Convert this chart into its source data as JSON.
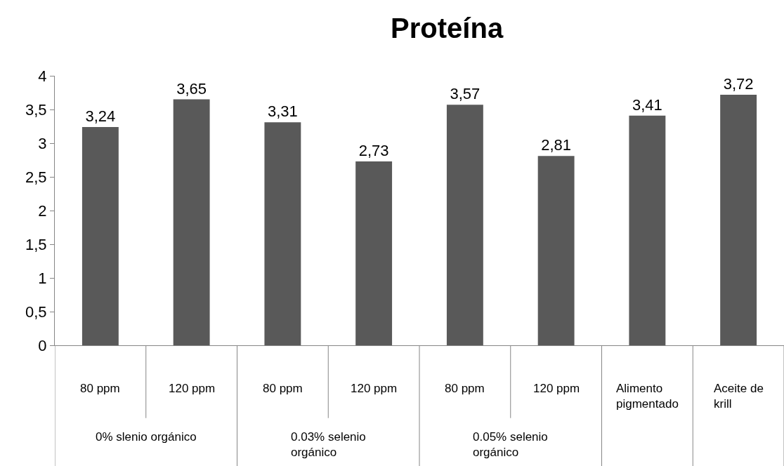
{
  "chart_data": {
    "type": "bar",
    "title": "Proteína",
    "categories": [
      "80 ppm",
      "120 ppm",
      "80 ppm",
      "120 ppm",
      "80 ppm",
      "120 ppm",
      "Alimento pigmentado",
      "Aceite de krill"
    ],
    "values": [
      3.24,
      3.65,
      3.31,
      2.73,
      3.57,
      2.81,
      3.41,
      3.72
    ],
    "value_labels": [
      "3,24",
      "3,65",
      "3,31",
      "2,73",
      "3,57",
      "2,81",
      "3,41",
      "3,72"
    ],
    "color": "#595959",
    "ylim": [
      0,
      4
    ],
    "yticks": [
      0,
      {
        "value": 0.5,
        "label": "0,5"
      },
      1,
      {
        "value": 1.5,
        "label": "1,5"
      },
      2,
      {
        "value": 2.5,
        "label": "2,5"
      },
      3,
      {
        "value": 3.5,
        "label": "3,5"
      },
      4
    ],
    "annotations": [
      "0% slenio orgánico",
      "0.03% selenio orgánico",
      "0.05% selenio orgánico"
    ],
    "legend": false
  }
}
